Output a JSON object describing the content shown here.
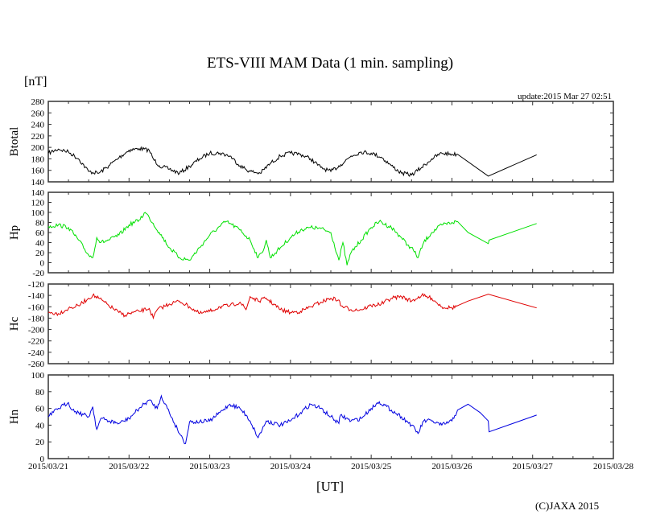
{
  "chart_data": {
    "type": "line",
    "title": "ETS-VIII MAM Data (1 min. sampling)",
    "unit_label": "[nT]",
    "xlabel": "[UT]",
    "update_text": "update:2015 Mar 27 02:51",
    "copyright": "(C)JAXA 2015",
    "x_ticks": [
      "2015/03/21",
      "2015/03/22",
      "2015/03/23",
      "2015/03/24",
      "2015/03/25",
      "2015/03/26",
      "2015/03/27",
      "2015/03/28"
    ],
    "x_range_days": [
      0,
      7
    ],
    "grid": false,
    "panels": [
      {
        "name": "Btotal",
        "color": "#000000",
        "ylim": [
          140,
          280
        ],
        "yticks": [
          "280",
          "260",
          "240",
          "220",
          "200",
          "180",
          "160",
          "140"
        ],
        "x": [
          0,
          0.125,
          0.25,
          0.375,
          0.5,
          0.625,
          0.75,
          0.875,
          1.0,
          1.125,
          1.25,
          1.3,
          1.375,
          1.5,
          1.625,
          1.75,
          1.875,
          2.0,
          2.125,
          2.25,
          2.375,
          2.5,
          2.625,
          2.75,
          2.875,
          3.0,
          3.125,
          3.25,
          3.375,
          3.5,
          3.625,
          3.75,
          3.875,
          4.0,
          4.125,
          4.25,
          4.375,
          4.5,
          4.625,
          4.75,
          4.875,
          5.0,
          5.07,
          5.45,
          6.05
        ],
        "values": [
          190,
          197,
          192,
          180,
          158,
          155,
          168,
          182,
          195,
          198,
          195,
          180,
          168,
          162,
          155,
          167,
          180,
          190,
          190,
          185,
          168,
          158,
          155,
          172,
          185,
          190,
          188,
          180,
          165,
          158,
          170,
          185,
          192,
          190,
          183,
          168,
          155,
          152,
          165,
          180,
          190,
          188,
          188,
          150,
          187
        ]
      },
      {
        "name": "Hp",
        "color": "#00e000",
        "ylim": [
          -20,
          140
        ],
        "yticks": [
          "140",
          "120",
          "100",
          "80",
          "60",
          "40",
          "20",
          "0",
          "-20"
        ],
        "x": [
          0,
          0.125,
          0.25,
          0.375,
          0.5,
          0.55,
          0.6,
          0.65,
          0.75,
          0.875,
          1.0,
          1.125,
          1.2,
          1.25,
          1.375,
          1.5,
          1.625,
          1.75,
          1.875,
          2.0,
          2.125,
          2.2,
          2.25,
          2.375,
          2.5,
          2.6,
          2.65,
          2.7,
          2.75,
          2.875,
          3.0,
          3.125,
          3.25,
          3.375,
          3.5,
          3.6,
          3.65,
          3.7,
          3.75,
          3.875,
          4.0,
          4.1,
          4.25,
          4.375,
          4.45,
          4.5,
          4.58,
          4.65,
          4.75,
          4.875,
          5.0,
          5.07,
          5.2,
          5.45,
          5.46,
          6.05
        ],
        "values": [
          72,
          75,
          70,
          45,
          15,
          10,
          50,
          40,
          45,
          55,
          75,
          85,
          100,
          90,
          60,
          30,
          10,
          5,
          30,
          55,
          72,
          82,
          78,
          65,
          45,
          10,
          20,
          45,
          10,
          30,
          50,
          65,
          70,
          68,
          60,
          5,
          40,
          -5,
          20,
          45,
          70,
          82,
          70,
          50,
          35,
          30,
          10,
          40,
          60,
          75,
          80,
          82,
          60,
          38,
          45,
          78
        ]
      },
      {
        "name": "Hc",
        "color": "#e00000",
        "ylim": [
          -260,
          -120
        ],
        "yticks": [
          "-120",
          "-140",
          "-160",
          "-180",
          "-200",
          "-220",
          "-240",
          "-260"
        ],
        "x": [
          0,
          0.125,
          0.25,
          0.375,
          0.5,
          0.55,
          0.625,
          0.75,
          0.875,
          0.95,
          1.0,
          1.125,
          1.25,
          1.3,
          1.35,
          1.5,
          1.625,
          1.75,
          1.875,
          2.0,
          2.125,
          2.25,
          2.375,
          2.45,
          2.5,
          2.6,
          2.7,
          2.875,
          3.0,
          3.125,
          3.25,
          3.375,
          3.5,
          3.6,
          3.62,
          3.75,
          3.875,
          4.0,
          4.125,
          4.25,
          4.375,
          4.5,
          4.625,
          4.75,
          4.875,
          5.0,
          5.07,
          5.2,
          5.45,
          6.05
        ],
        "values": [
          -170,
          -172,
          -163,
          -158,
          -145,
          -140,
          -145,
          -158,
          -170,
          -175,
          -172,
          -168,
          -163,
          -180,
          -165,
          -155,
          -150,
          -160,
          -172,
          -168,
          -160,
          -158,
          -152,
          -165,
          -142,
          -150,
          -145,
          -165,
          -170,
          -168,
          -160,
          -152,
          -145,
          -148,
          -158,
          -165,
          -165,
          -158,
          -155,
          -145,
          -142,
          -150,
          -140,
          -145,
          -160,
          -162,
          -158,
          -150,
          -138,
          -162
        ]
      },
      {
        "name": "Hn",
        "color": "#0000e0",
        "ylim": [
          0,
          100
        ],
        "yticks": [
          "100",
          "80",
          "60",
          "40",
          "20",
          "0"
        ],
        "x": [
          0,
          0.125,
          0.25,
          0.3,
          0.375,
          0.5,
          0.55,
          0.6,
          0.65,
          0.75,
          0.875,
          1.0,
          1.125,
          1.25,
          1.35,
          1.4,
          1.5,
          1.6,
          1.7,
          1.75,
          1.875,
          2.0,
          2.125,
          2.25,
          2.375,
          2.45,
          2.5,
          2.6,
          2.7,
          2.875,
          3.0,
          3.125,
          3.25,
          3.375,
          3.5,
          3.6,
          3.62,
          3.75,
          3.875,
          4.0,
          4.1,
          4.25,
          4.375,
          4.5,
          4.58,
          4.65,
          4.75,
          4.875,
          5.0,
          5.07,
          5.2,
          5.35,
          5.45,
          5.46,
          6.05
        ],
        "values": [
          50,
          60,
          67,
          58,
          55,
          50,
          62,
          35,
          48,
          45,
          42,
          48,
          60,
          70,
          60,
          75,
          55,
          35,
          18,
          44,
          44,
          45,
          55,
          65,
          60,
          52,
          45,
          25,
          45,
          40,
          45,
          55,
          65,
          60,
          50,
          42,
          52,
          45,
          48,
          60,
          68,
          58,
          50,
          40,
          30,
          45,
          45,
          40,
          45,
          58,
          65,
          55,
          45,
          32,
          52
        ]
      }
    ]
  }
}
